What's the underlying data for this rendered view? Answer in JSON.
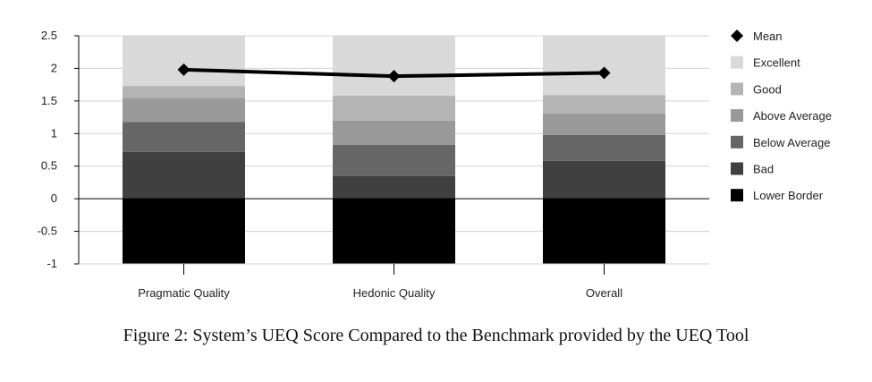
{
  "figure": {
    "caption": "Figure 2: System’s UEQ Score Compared to the Benchmark provided by the UEQ Tool"
  },
  "chart_data": {
    "type": "bar",
    "stacked": true,
    "categories": [
      "Pragmatic Quality",
      "Hedonic Quality",
      "Overall"
    ],
    "ylim": [
      -1,
      2.5
    ],
    "yticks": [
      -1,
      -0.5,
      0,
      0.5,
      1,
      1.5,
      2,
      2.5
    ],
    "ytick_labels": [
      "-1",
      "-0.5",
      "0",
      "0.5",
      "1",
      "1.5",
      "2",
      "2.5"
    ],
    "grid": true,
    "legend_position": "right",
    "series": [
      {
        "name": "Lower Border",
        "color": "#000000",
        "values": [
          -1,
          -1,
          -1
        ]
      },
      {
        "name": "Bad",
        "color": "#404040",
        "values": [
          0.72,
          0.35,
          0.58
        ]
      },
      {
        "name": "Below Average",
        "color": "#666666",
        "values": [
          0.46,
          0.48,
          0.4
        ]
      },
      {
        "name": "Above Average",
        "color": "#999999",
        "values": [
          0.37,
          0.37,
          0.33
        ]
      },
      {
        "name": "Good",
        "color": "#b4b4b4",
        "values": [
          0.18,
          0.38,
          0.28
        ]
      },
      {
        "name": "Excellent",
        "color": "#d9d9d9",
        "values": [
          0.77,
          0.92,
          0.91
        ]
      }
    ],
    "line_series": {
      "name": "Mean",
      "color": "#000000",
      "marker": "diamond",
      "values": [
        1.98,
        1.88,
        1.93
      ]
    }
  }
}
